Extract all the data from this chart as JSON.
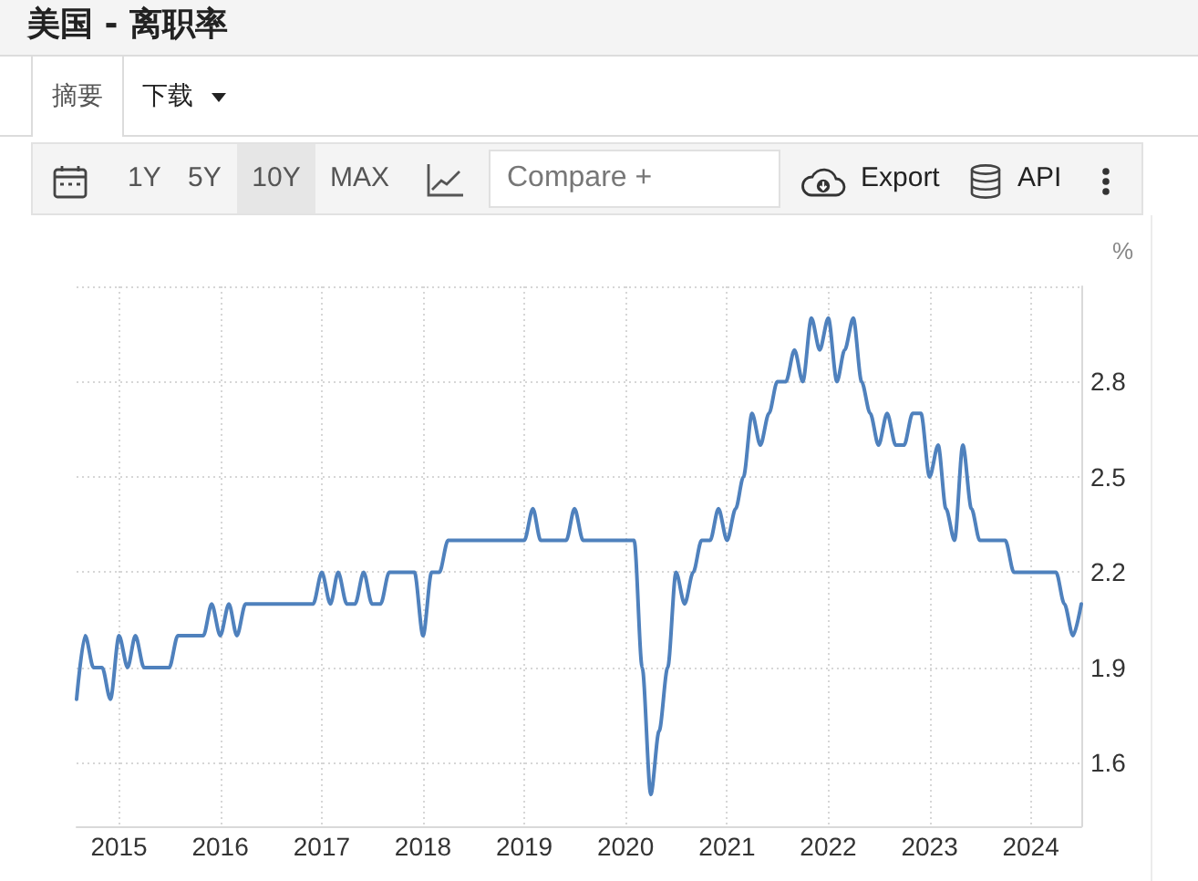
{
  "chart_data": {
    "type": "line",
    "title": "美国 - 离职率",
    "ylabel": "%",
    "annotations": [
      "摘要",
      "下载",
      "1Y",
      "5Y",
      "10Y",
      "MAX",
      "Compare +",
      "Export",
      "API"
    ],
    "x": [
      "2014-08",
      "2014-09",
      "2014-10",
      "2014-11",
      "2014-12",
      "2015-01",
      "2015-02",
      "2015-03",
      "2015-04",
      "2015-05",
      "2015-06",
      "2015-07",
      "2015-08",
      "2015-09",
      "2015-10",
      "2015-11",
      "2015-12",
      "2016-01",
      "2016-02",
      "2016-03",
      "2016-04",
      "2016-05",
      "2016-06",
      "2016-07",
      "2016-08",
      "2016-09",
      "2016-10",
      "2016-11",
      "2016-12",
      "2017-01",
      "2017-02",
      "2017-03",
      "2017-04",
      "2017-05",
      "2017-06",
      "2017-07",
      "2017-08",
      "2017-09",
      "2017-10",
      "2017-11",
      "2017-12",
      "2018-01",
      "2018-02",
      "2018-03",
      "2018-04",
      "2018-05",
      "2018-06",
      "2018-07",
      "2018-08",
      "2018-09",
      "2018-10",
      "2018-11",
      "2018-12",
      "2019-01",
      "2019-02",
      "2019-03",
      "2019-04",
      "2019-05",
      "2019-06",
      "2019-07",
      "2019-08",
      "2019-09",
      "2019-10",
      "2019-11",
      "2019-12",
      "2020-01",
      "2020-02",
      "2020-03",
      "2020-04",
      "2020-05",
      "2020-06",
      "2020-07",
      "2020-08",
      "2020-09",
      "2020-10",
      "2020-11",
      "2020-12",
      "2021-01",
      "2021-02",
      "2021-03",
      "2021-04",
      "2021-05",
      "2021-06",
      "2021-07",
      "2021-08",
      "2021-09",
      "2021-10",
      "2021-11",
      "2021-12",
      "2022-01",
      "2022-02",
      "2022-03",
      "2022-04",
      "2022-05",
      "2022-06",
      "2022-07",
      "2022-08",
      "2022-09",
      "2022-10",
      "2022-11",
      "2022-12",
      "2023-01",
      "2023-02",
      "2023-03",
      "2023-04",
      "2023-05",
      "2023-06",
      "2023-07",
      "2023-08",
      "2023-09",
      "2023-10",
      "2023-11",
      "2023-12",
      "2024-01",
      "2024-02",
      "2024-03",
      "2024-04",
      "2024-05",
      "2024-06",
      "2024-07"
    ],
    "values": [
      1.8,
      2.0,
      1.9,
      1.9,
      1.8,
      2.0,
      1.9,
      2.0,
      1.9,
      1.9,
      1.9,
      1.9,
      2.0,
      2.0,
      2.0,
      2.0,
      2.1,
      2.0,
      2.1,
      2.0,
      2.1,
      2.1,
      2.1,
      2.1,
      2.1,
      2.1,
      2.1,
      2.1,
      2.1,
      2.2,
      2.1,
      2.2,
      2.1,
      2.1,
      2.2,
      2.1,
      2.1,
      2.2,
      2.2,
      2.2,
      2.2,
      2.0,
      2.2,
      2.2,
      2.3,
      2.3,
      2.3,
      2.3,
      2.3,
      2.3,
      2.3,
      2.3,
      2.3,
      2.3,
      2.4,
      2.3,
      2.3,
      2.3,
      2.3,
      2.4,
      2.3,
      2.3,
      2.3,
      2.3,
      2.3,
      2.3,
      2.3,
      1.9,
      1.5,
      1.7,
      1.9,
      2.2,
      2.1,
      2.2,
      2.3,
      2.3,
      2.4,
      2.3,
      2.4,
      2.5,
      2.7,
      2.6,
      2.7,
      2.8,
      2.8,
      2.9,
      2.8,
      3.0,
      2.9,
      3.0,
      2.8,
      2.9,
      3.0,
      2.8,
      2.7,
      2.6,
      2.7,
      2.6,
      2.6,
      2.7,
      2.7,
      2.5,
      2.6,
      2.4,
      2.3,
      2.6,
      2.4,
      2.3,
      2.3,
      2.3,
      2.3,
      2.2,
      2.2,
      2.2,
      2.2,
      2.2,
      2.2,
      2.1,
      2.0,
      2.1
    ],
    "color": "#4f81bd",
    "xlim": [
      "2014-08",
      "2024-07"
    ],
    "xticks": [
      "2015",
      "2016",
      "2017",
      "2018",
      "2019",
      "2020",
      "2021",
      "2022",
      "2023",
      "2024"
    ],
    "ylim": [
      1.4,
      3.1
    ],
    "yticks": [
      1.6,
      1.9,
      2.2,
      2.5,
      2.8,
      {
        "value": 3.1,
        "label": null
      }
    ],
    "grid": true,
    "marker": "none",
    "line_style": "solid"
  }
}
